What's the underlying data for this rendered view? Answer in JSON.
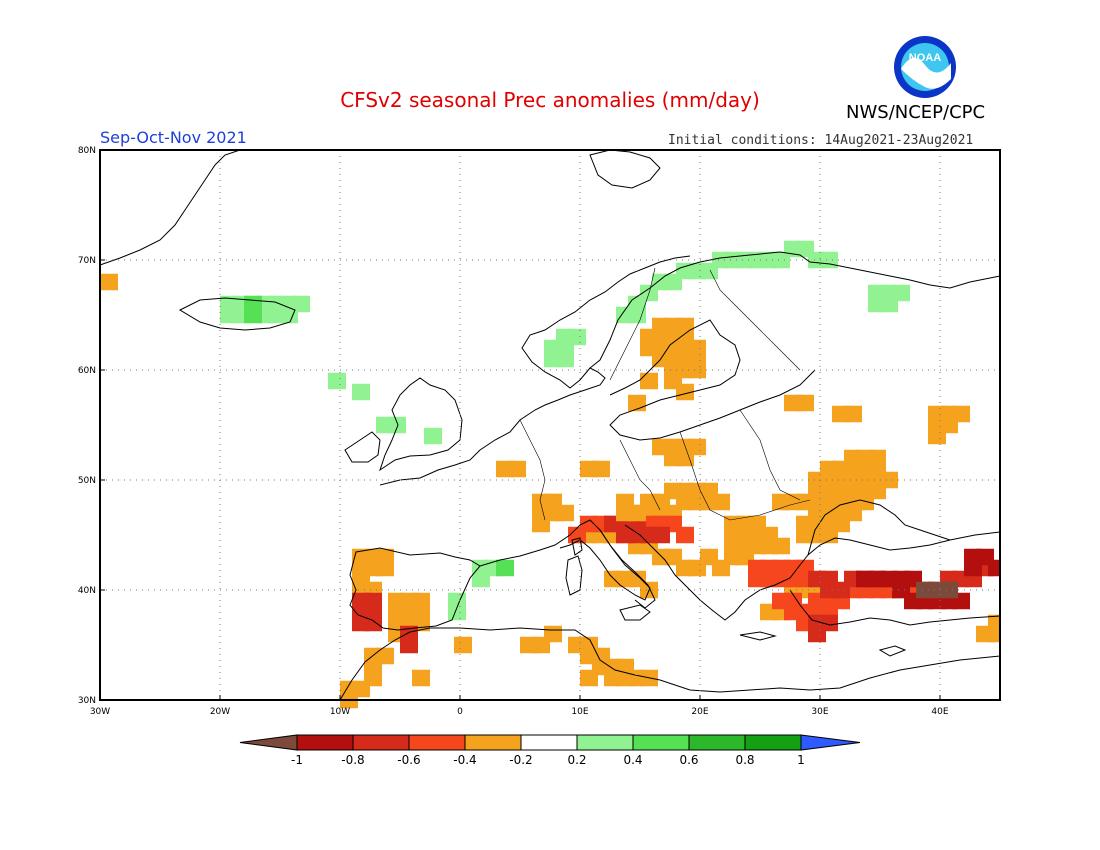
{
  "header": {
    "title": "CFSv2 seasonal Prec anomalies (mm/day)",
    "season": "Sep-Oct-Nov 2021",
    "agency": "NWS/NCEP/CPC",
    "initial_conditions": "Initial conditions: 14Aug2021-23Aug2021",
    "logo_text": "NOAA"
  },
  "map": {
    "lon_range": [
      -30,
      45
    ],
    "lat_range": [
      30,
      80
    ],
    "lon_ticks": [
      {
        "value": -30,
        "label": "30W"
      },
      {
        "value": -20,
        "label": "20W"
      },
      {
        "value": -10,
        "label": "10W"
      },
      {
        "value": 0,
        "label": "0"
      },
      {
        "value": 10,
        "label": "10E"
      },
      {
        "value": 20,
        "label": "20E"
      },
      {
        "value": 30,
        "label": "30E"
      },
      {
        "value": 40,
        "label": "40E"
      }
    ],
    "lat_ticks": [
      {
        "value": 30,
        "label": "30N"
      },
      {
        "value": 40,
        "label": "40N"
      },
      {
        "value": 50,
        "label": "50N"
      },
      {
        "value": 60,
        "label": "60N"
      },
      {
        "value": 70,
        "label": "70N"
      },
      {
        "value": 80,
        "label": "80N"
      }
    ],
    "grid": "dotted"
  },
  "colorbar": {
    "labels": [
      "-1",
      "-0.8",
      "-0.6",
      "-0.4",
      "-0.2",
      "0.2",
      "0.4",
      "0.6",
      "0.8",
      "1"
    ],
    "colors": [
      "#7b4a3a",
      "#b40f0f",
      "#d62a1a",
      "#f5461e",
      "#f5a21e",
      "#ffffff",
      "#91f291",
      "#55e055",
      "#2bb82b",
      "#14a014",
      "#2d5bff"
    ]
  },
  "anomaly_regions": [
    {
      "name": "iceland",
      "color": "#91f291",
      "cells": [
        [
          -20,
          65
        ],
        [
          -19,
          65
        ],
        [
          -17,
          65
        ],
        [
          -16,
          65
        ],
        [
          -15,
          65
        ],
        [
          -20,
          66
        ],
        [
          -19,
          66
        ],
        [
          -17,
          66
        ],
        [
          -16,
          66
        ],
        [
          -15,
          66
        ],
        [
          -14,
          66
        ]
      ]
    },
    {
      "name": "iceland-core",
      "color": "#55e055",
      "cells": [
        [
          -18,
          65
        ],
        [
          -18,
          66
        ]
      ]
    },
    {
      "name": "greenland-edge",
      "color": "#f5a21e",
      "cells": [
        [
          -30,
          68
        ]
      ]
    },
    {
      "name": "norway-coast",
      "color": "#91f291",
      "cells": [
        [
          7,
          62
        ],
        [
          8,
          62
        ],
        [
          8,
          61
        ],
        [
          7,
          61
        ],
        [
          8,
          63
        ],
        [
          9,
          63
        ],
        [
          13,
          65
        ],
        [
          14,
          65
        ],
        [
          14,
          66
        ],
        [
          15,
          67
        ],
        [
          16,
          68
        ],
        [
          17,
          68
        ],
        [
          18,
          69
        ],
        [
          19,
          69
        ],
        [
          20,
          69
        ],
        [
          21,
          70
        ],
        [
          22,
          70
        ],
        [
          23,
          70
        ],
        [
          24,
          70
        ],
        [
          25,
          70
        ],
        [
          26,
          70
        ],
        [
          27,
          71
        ],
        [
          28,
          71
        ],
        [
          29,
          70
        ],
        [
          30,
          70
        ],
        [
          34,
          67
        ],
        [
          35,
          67
        ],
        [
          36,
          67
        ],
        [
          34,
          66
        ],
        [
          35,
          66
        ]
      ]
    },
    {
      "name": "sweden",
      "color": "#f5a21e",
      "cells": [
        [
          15,
          63
        ],
        [
          16,
          63
        ],
        [
          17,
          63
        ],
        [
          18,
          63
        ],
        [
          15,
          62
        ],
        [
          16,
          62
        ],
        [
          17,
          62
        ],
        [
          18,
          62
        ],
        [
          19,
          62
        ],
        [
          16,
          61
        ],
        [
          17,
          61
        ],
        [
          18,
          61
        ],
        [
          19,
          61
        ],
        [
          17,
          60
        ],
        [
          18,
          60
        ],
        [
          19,
          60
        ],
        [
          17,
          59
        ],
        [
          18,
          58
        ],
        [
          15,
          59
        ],
        [
          16,
          64
        ],
        [
          17,
          64
        ],
        [
          18,
          64
        ],
        [
          14,
          57
        ],
        [
          27,
          57
        ],
        [
          28,
          57
        ],
        [
          39,
          56
        ],
        [
          40,
          56
        ],
        [
          41,
          56
        ],
        [
          39,
          55
        ],
        [
          40,
          55
        ],
        [
          39,
          54
        ]
      ]
    },
    {
      "name": "central-europe",
      "color": "#f5a21e",
      "cells": [
        [
          16,
          53
        ],
        [
          17,
          53
        ],
        [
          18,
          53
        ],
        [
          19,
          53
        ],
        [
          17,
          52
        ],
        [
          18,
          52
        ],
        [
          10,
          51
        ],
        [
          11,
          51
        ],
        [
          6,
          48
        ],
        [
          7,
          48
        ],
        [
          6,
          47
        ],
        [
          17,
          49
        ],
        [
          18,
          49
        ],
        [
          19,
          49
        ],
        [
          20,
          49
        ],
        [
          18,
          48
        ],
        [
          19,
          48
        ],
        [
          20,
          48
        ],
        [
          21,
          48
        ],
        [
          15,
          48
        ],
        [
          16,
          48
        ],
        [
          14,
          47
        ],
        [
          15,
          47
        ],
        [
          16,
          47
        ],
        [
          17,
          47
        ],
        [
          22,
          46
        ],
        [
          23,
          46
        ],
        [
          24,
          46
        ],
        [
          22,
          45
        ],
        [
          23,
          45
        ],
        [
          24,
          45
        ],
        [
          25,
          45
        ],
        [
          28,
          45
        ],
        [
          29,
          45
        ],
        [
          30,
          45
        ],
        [
          28,
          46
        ],
        [
          29,
          46
        ],
        [
          30,
          46
        ],
        [
          31,
          46
        ],
        [
          29,
          47
        ],
        [
          30,
          47
        ],
        [
          31,
          47
        ],
        [
          32,
          47
        ],
        [
          29,
          48
        ],
        [
          30,
          48
        ],
        [
          31,
          48
        ],
        [
          32,
          48
        ],
        [
          33,
          48
        ],
        [
          29,
          49
        ],
        [
          30,
          49
        ],
        [
          31,
          49
        ],
        [
          32,
          49
        ],
        [
          33,
          49
        ],
        [
          34,
          49
        ],
        [
          29,
          50
        ],
        [
          30,
          50
        ],
        [
          31,
          50
        ],
        [
          32,
          50
        ],
        [
          33,
          50
        ],
        [
          34,
          50
        ],
        [
          35,
          50
        ],
        [
          30,
          51
        ],
        [
          31,
          51
        ],
        [
          32,
          51
        ],
        [
          33,
          51
        ],
        [
          34,
          51
        ],
        [
          32,
          52
        ],
        [
          33,
          52
        ],
        [
          34,
          52
        ],
        [
          31,
          56
        ],
        [
          32,
          56
        ],
        [
          28,
          48
        ],
        [
          27,
          48
        ],
        [
          26,
          48
        ]
      ]
    },
    {
      "name": "balkans",
      "color": "#f5a21e",
      "cells": [
        [
          10,
          45
        ],
        [
          11,
          45
        ],
        [
          12,
          45
        ],
        [
          13,
          45
        ],
        [
          14,
          44
        ],
        [
          15,
          44
        ],
        [
          16,
          43
        ],
        [
          17,
          43
        ],
        [
          18,
          42
        ],
        [
          19,
          42
        ],
        [
          20,
          43
        ],
        [
          21,
          42
        ],
        [
          22,
          44
        ],
        [
          23,
          44
        ],
        [
          24,
          44
        ],
        [
          25,
          44
        ],
        [
          26,
          44
        ],
        [
          22,
          43
        ],
        [
          23,
          43
        ],
        [
          27,
          40
        ],
        [
          28,
          40
        ],
        [
          29,
          40
        ],
        [
          25,
          38
        ],
        [
          26,
          38
        ],
        [
          12,
          41
        ],
        [
          13,
          41
        ],
        [
          14,
          41
        ],
        [
          15,
          40
        ]
      ]
    },
    {
      "name": "italy-red",
      "color": "#f5461e",
      "cells": [
        [
          10,
          46
        ],
        [
          11,
          46
        ],
        [
          12,
          46
        ],
        [
          13,
          46
        ],
        [
          14,
          46
        ],
        [
          15,
          46
        ],
        [
          16,
          46
        ],
        [
          17,
          46
        ],
        [
          18,
          45
        ],
        [
          9,
          45
        ],
        [
          24,
          42
        ],
        [
          25,
          42
        ],
        [
          26,
          42
        ],
        [
          27,
          42
        ],
        [
          28,
          42
        ],
        [
          24,
          41
        ],
        [
          25,
          41
        ],
        [
          26,
          41
        ],
        [
          27,
          41
        ],
        [
          28,
          41
        ],
        [
          32,
          40
        ],
        [
          33,
          40
        ],
        [
          34,
          40
        ],
        [
          35,
          40
        ],
        [
          36,
          40
        ],
        [
          37,
          40
        ],
        [
          38,
          40
        ],
        [
          39,
          40
        ],
        [
          27,
          38
        ],
        [
          28,
          38
        ],
        [
          29,
          38
        ],
        [
          30,
          38
        ],
        [
          28,
          37
        ],
        [
          29,
          37
        ],
        [
          26,
          39
        ],
        [
          27,
          39
        ],
        [
          29,
          39
        ],
        [
          30,
          39
        ],
        [
          31,
          39
        ]
      ]
    },
    {
      "name": "italy-dark",
      "color": "#d62a1a",
      "cells": [
        [
          12,
          46
        ],
        [
          13,
          46
        ],
        [
          14,
          46
        ],
        [
          15,
          45
        ],
        [
          16,
          45
        ],
        [
          14,
          45
        ],
        [
          13,
          45
        ],
        [
          29,
          41
        ],
        [
          30,
          41
        ],
        [
          30,
          40
        ],
        [
          31,
          40
        ],
        [
          32,
          41
        ],
        [
          33,
          41
        ],
        [
          34,
          41
        ],
        [
          29,
          37
        ],
        [
          30,
          37
        ],
        [
          29,
          36
        ],
        [
          40,
          41
        ],
        [
          41,
          41
        ],
        [
          42,
          41
        ],
        [
          43,
          42
        ],
        [
          42,
          42
        ]
      ]
    },
    {
      "name": "turkey-darkest",
      "color": "#b40f0f",
      "cells": [
        [
          33,
          41
        ],
        [
          34,
          41
        ],
        [
          35,
          41
        ],
        [
          36,
          41
        ],
        [
          37,
          41
        ],
        [
          42,
          43
        ],
        [
          43,
          43
        ],
        [
          42,
          42
        ],
        [
          44,
          42
        ],
        [
          36,
          40
        ],
        [
          37,
          39
        ],
        [
          38,
          39
        ],
        [
          39,
          39
        ],
        [
          40,
          39
        ],
        [
          41,
          39
        ]
      ]
    },
    {
      "name": "turkey-brown",
      "color": "#7b4a3a",
      "cells": [
        [
          38,
          40
        ],
        [
          39,
          40
        ],
        [
          40,
          40
        ]
      ]
    },
    {
      "name": "iberia",
      "color": "#f5a21e",
      "cells": [
        [
          -9,
          42
        ],
        [
          -8,
          42
        ],
        [
          -7,
          42
        ],
        [
          -9,
          41
        ],
        [
          -9,
          40
        ],
        [
          -8,
          40
        ],
        [
          -9,
          43
        ],
        [
          -8,
          43
        ],
        [
          -7,
          43
        ],
        [
          -6,
          39
        ],
        [
          -5,
          39
        ],
        [
          -4,
          39
        ],
        [
          -6,
          38
        ],
        [
          -5,
          38
        ],
        [
          -4,
          38
        ],
        [
          -6,
          37
        ],
        [
          -5,
          37
        ],
        [
          -4,
          37
        ],
        [
          -6,
          36
        ],
        [
          -5,
          36
        ],
        [
          -8,
          34
        ],
        [
          -7,
          34
        ],
        [
          -8,
          33
        ],
        [
          -8,
          32
        ],
        [
          -9,
          31
        ],
        [
          -10,
          31
        ],
        [
          -10,
          30
        ],
        [
          -4,
          32
        ],
        [
          5,
          35
        ],
        [
          6,
          35
        ],
        [
          9,
          35
        ],
        [
          10,
          35
        ],
        [
          10,
          34
        ],
        [
          11,
          34
        ],
        [
          11,
          33
        ],
        [
          12,
          33
        ],
        [
          13,
          33
        ],
        [
          12,
          32
        ],
        [
          13,
          32
        ],
        [
          14,
          32
        ],
        [
          15,
          32
        ],
        [
          10,
          32
        ],
        [
          -0.5,
          35
        ],
        [
          7,
          36
        ],
        [
          44,
          37
        ],
        [
          45,
          37
        ],
        [
          45,
          36
        ],
        [
          44,
          36
        ],
        [
          43,
          36
        ]
      ]
    },
    {
      "name": "iberia-red",
      "color": "#d62a1a",
      "cells": [
        [
          -9,
          39
        ],
        [
          -8,
          39
        ],
        [
          -9,
          38
        ],
        [
          -8,
          38
        ],
        [
          -9,
          37
        ],
        [
          -8,
          37
        ],
        [
          -5,
          36
        ],
        [
          -5,
          35
        ]
      ]
    },
    {
      "name": "pyrenees-green",
      "color": "#91f291",
      "cells": [
        [
          1,
          42
        ],
        [
          2,
          42
        ],
        [
          1,
          41
        ],
        [
          -1,
          39
        ],
        [
          -1,
          38
        ],
        [
          -6,
          55
        ],
        [
          -7,
          55
        ],
        [
          -3,
          54
        ],
        [
          -9,
          58
        ],
        [
          -11,
          59
        ]
      ]
    },
    {
      "name": "catalonia-green",
      "color": "#55e055",
      "cells": [
        [
          3,
          42
        ]
      ]
    },
    {
      "name": "france-orange",
      "color": "#f5a21e",
      "cells": [
        [
          6,
          47
        ],
        [
          7,
          47
        ],
        [
          7,
          48
        ],
        [
          8,
          47
        ],
        [
          6,
          46
        ],
        [
          13,
          47
        ],
        [
          14,
          47
        ],
        [
          13,
          48
        ],
        [
          3,
          51
        ],
        [
          4,
          51
        ]
      ]
    }
  ]
}
